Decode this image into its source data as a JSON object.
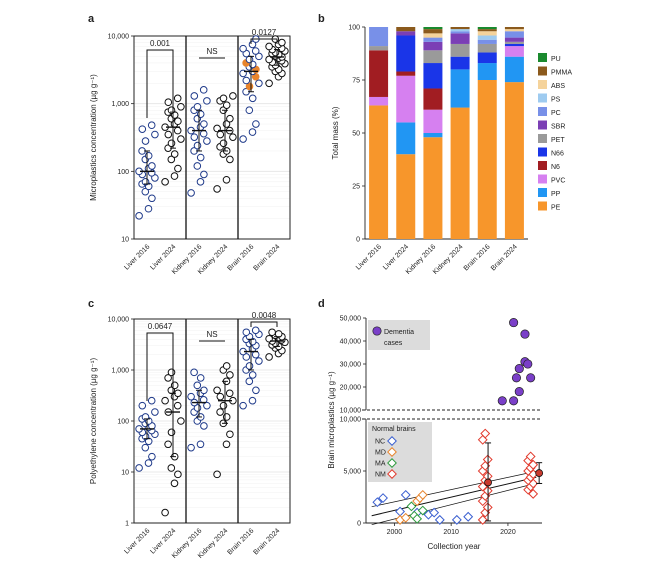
{
  "chart_data": [
    {
      "panel": "a",
      "type": "scatter",
      "ylabel": "Microplastics concentration (µg g⁻¹)",
      "yscale": "log",
      "ylim": [
        10,
        10000
      ],
      "yticks": [
        "10",
        "100",
        "1,000",
        "10,000"
      ],
      "categories": [
        "Liver 2016",
        "Liver 2024",
        "Kidney 2016",
        "Kidney 2024",
        "Brain 2016",
        "Brain 2024"
      ],
      "series": [
        {
          "values": [
            22,
            28,
            40,
            50,
            60,
            65,
            70,
            80,
            90,
            95,
            100,
            110,
            120,
            150,
            170,
            200,
            280,
            350,
            420,
            480
          ]
        },
        {
          "values": [
            70,
            85,
            110,
            150,
            180,
            220,
            260,
            300,
            350,
            400,
            450,
            500,
            550,
            600,
            680,
            750,
            800,
            900,
            1050,
            1200
          ]
        },
        {
          "values": [
            48,
            70,
            90,
            120,
            160,
            200,
            240,
            280,
            320,
            360,
            400,
            450,
            500,
            600,
            700,
            800,
            900,
            1100,
            1300,
            1600
          ]
        },
        {
          "values": [
            55,
            75,
            150,
            180,
            200,
            230,
            260,
            320,
            350,
            400,
            430,
            500,
            600,
            800,
            950,
            1100,
            1200,
            1300
          ]
        },
        {
          "values": [
            300,
            380,
            500,
            800,
            1200,
            1500,
            1800,
            2000,
            2200,
            2500,
            2800,
            3000,
            3200,
            3500,
            3800,
            4000,
            4500,
            5000,
            5500,
            6000,
            6500,
            7500,
            9000
          ]
        },
        {
          "values": [
            2000,
            2500,
            2800,
            3000,
            3200,
            3500,
            3700,
            3900,
            4100,
            4300,
            4500,
            4700,
            4900,
            5100,
            5300,
            5500,
            5700,
            6000,
            6300,
            6600,
            7000,
            7500,
            8000,
            9000
          ]
        }
      ],
      "brackets": [
        {
          "from": "Liver 2016",
          "to": "Liver 2024",
          "label": "0.001"
        },
        {
          "from": "Kidney 2016",
          "to": "Kidney 2024",
          "label": "NS"
        },
        {
          "from": "Brain 2016",
          "to": "Brain 2024",
          "label": "0.0127"
        }
      ],
      "colors": {
        "2016": "#1f3a8a",
        "2024": "#111111",
        "highlight": "#e8842c"
      }
    },
    {
      "panel": "b",
      "type": "bar",
      "ylabel": "Total mass (%)",
      "ylim": [
        0,
        100
      ],
      "yticks": [
        "0",
        "25",
        "50",
        "75",
        "100"
      ],
      "categories": [
        "Liver 2016",
        "Liver 2024",
        "Kidney 2016",
        "Kidney 2024",
        "Brain 2016",
        "Brain 2024"
      ],
      "series": [
        {
          "name": "PE",
          "color": "#f7962b",
          "values": [
            63,
            40,
            48,
            62,
            75,
            74
          ]
        },
        {
          "name": "PP",
          "color": "#2196f3",
          "values": [
            0,
            15,
            2,
            18,
            8,
            12
          ]
        },
        {
          "name": "PVC",
          "color": "#d680f0",
          "values": [
            4,
            22,
            11,
            0,
            0,
            5
          ]
        },
        {
          "name": "N6",
          "color": "#a11d22",
          "values": [
            22,
            2,
            10,
            0,
            0,
            0
          ]
        },
        {
          "name": "N66",
          "color": "#1a35e8",
          "values": [
            0,
            17,
            12,
            6,
            5,
            1
          ]
        },
        {
          "name": "PET",
          "color": "#9a9a9a",
          "values": [
            2,
            0,
            6,
            6,
            4,
            1
          ]
        },
        {
          "name": "SBR",
          "color": "#7b3fb5",
          "values": [
            0,
            2,
            4,
            5,
            0,
            2
          ]
        },
        {
          "name": "PC",
          "color": "#7890e8",
          "values": [
            9,
            0,
            2,
            1,
            2,
            3
          ]
        },
        {
          "name": "PS",
          "color": "#9ecbf0",
          "values": [
            0,
            0,
            0,
            1,
            2,
            0
          ]
        },
        {
          "name": "ABS",
          "color": "#f5d39b",
          "values": [
            0,
            0,
            2,
            0,
            2,
            1
          ]
        },
        {
          "name": "PMMA",
          "color": "#8b5a1d",
          "values": [
            0,
            2,
            2,
            1,
            1,
            1
          ]
        },
        {
          "name": "PU",
          "color": "#1a8a2e",
          "values": [
            0,
            0,
            1,
            0,
            1,
            0
          ]
        }
      ]
    },
    {
      "panel": "c",
      "type": "scatter",
      "ylabel": "Polyethylene concentration (µg g⁻¹)",
      "yscale": "log",
      "ylim": [
        1,
        10000
      ],
      "yticks": [
        "1",
        "10",
        "100",
        "1,000",
        "10,000"
      ],
      "categories": [
        "Liver 2016",
        "Liver 2024",
        "Kidney 2016",
        "Kidney 2024",
        "Brain 2016",
        "Brain 2024"
      ],
      "series": [
        {
          "values": [
            12,
            15,
            20,
            30,
            40,
            45,
            50,
            55,
            60,
            65,
            70,
            75,
            80,
            90,
            100,
            110,
            120,
            150,
            200,
            250
          ]
        },
        {
          "values": [
            1.6,
            6,
            9,
            12,
            20,
            35,
            60,
            100,
            150,
            200,
            250,
            300,
            350,
            400,
            500,
            700,
            900
          ]
        },
        {
          "values": [
            30,
            35,
            80,
            100,
            120,
            150,
            180,
            200,
            230,
            260,
            300,
            350,
            400,
            500,
            700,
            900
          ]
        },
        {
          "values": [
            9,
            35,
            55,
            90,
            120,
            150,
            200,
            250,
            300,
            350,
            400,
            600,
            800,
            1000,
            1200
          ]
        },
        {
          "values": [
            200,
            250,
            400,
            600,
            800,
            1000,
            1200,
            1500,
            1800,
            2000,
            2300,
            2600,
            3000,
            3300,
            3600,
            4000,
            4500,
            5000,
            5500,
            6000
          ]
        },
        {
          "values": [
            1800,
            2100,
            2400,
            2700,
            2900,
            3100,
            3300,
            3500,
            3700,
            3900,
            4100,
            4300,
            4500,
            4800,
            5100,
            5500
          ]
        }
      ],
      "brackets": [
        {
          "from": "Liver 2016",
          "to": "Liver 2024",
          "label": "0.0647"
        },
        {
          "from": "Kidney 2016",
          "to": "Kidney 2024",
          "label": "NS"
        },
        {
          "from": "Brain 2016",
          "to": "Brain 2024",
          "label": "0.0048"
        }
      ],
      "colors": {
        "2016": "#1f3a8a",
        "2024": "#111111"
      }
    },
    {
      "panel": "d",
      "type": "scatter",
      "xlabel": "Collection year",
      "ylabel": "Brain microplastics (µg g⁻¹)",
      "xlim": [
        1995,
        2026
      ],
      "xticks": [
        "2000",
        "2010",
        "2020"
      ],
      "ylim_upper": [
        10000,
        50000
      ],
      "yticks_upper": [
        "10,000",
        "20,000",
        "30,000",
        "40,000",
        "50,000"
      ],
      "ylim_lower": [
        0,
        10000
      ],
      "yticks_lower": [
        "0",
        "5,000",
        "10,000"
      ],
      "legend_upper": "Dementia cases",
      "legend_lower_title": "Normal brains",
      "legend_lower": [
        {
          "label": "NC",
          "color": "#3a5fd0"
        },
        {
          "label": "MD",
          "color": "#e8842c"
        },
        {
          "label": "MA",
          "color": "#2e9b3e"
        },
        {
          "label": "NM",
          "color": "#e23b2e"
        }
      ],
      "dementia": {
        "color": "#7a3fc8",
        "points": [
          [
            2019,
            14000
          ],
          [
            2021,
            48000
          ],
          [
            2021,
            14000
          ],
          [
            2021.5,
            24000
          ],
          [
            2022,
            28000
          ],
          [
            2022,
            18000
          ],
          [
            2023,
            43000
          ],
          [
            2023,
            31000
          ],
          [
            2023.5,
            30000
          ],
          [
            2024,
            24000
          ]
        ]
      },
      "normal": [
        {
          "label": "NC",
          "points": [
            [
              1997,
              2000
            ],
            [
              1998,
              2400
            ],
            [
              2001,
              1100
            ],
            [
              2002,
              2700
            ],
            [
              2004,
              1000
            ],
            [
              2006,
              800
            ],
            [
              2007,
              1000
            ],
            [
              2008,
              300
            ],
            [
              2011,
              300
            ],
            [
              2013,
              600
            ]
          ]
        },
        {
          "label": "MD",
          "points": [
            [
              2001,
              300
            ],
            [
              2002,
              500
            ],
            [
              2004,
              2100
            ],
            [
              2004.5,
              2400
            ],
            [
              2005,
              2700
            ]
          ]
        },
        {
          "label": "MA",
          "points": [
            [
              2003,
              1600
            ],
            [
              2003.5,
              700
            ],
            [
              2004,
              400
            ],
            [
              2005,
              1200
            ]
          ]
        },
        {
          "label": "NM",
          "points": [
            [
              2016,
              300
            ],
            [
              2016,
              1000
            ],
            [
              2016,
              1500
            ],
            [
              2016,
              2100
            ],
            [
              2016,
              2600
            ],
            [
              2016,
              3100
            ],
            [
              2016,
              3500
            ],
            [
              2016,
              4100
            ],
            [
              2016,
              4500
            ],
            [
              2016,
              5000
            ],
            [
              2016,
              5500
            ],
            [
              2016,
              6100
            ],
            [
              2016,
              8000
            ],
            [
              2016,
              8600
            ],
            [
              2024,
              2800
            ],
            [
              2024,
              3200
            ],
            [
              2024,
              3500
            ],
            [
              2024,
              3800
            ],
            [
              2024,
              4100
            ],
            [
              2024,
              4400
            ],
            [
              2024,
              4700
            ],
            [
              2024,
              5000
            ],
            [
              2024,
              5300
            ],
            [
              2024,
              5600
            ],
            [
              2024,
              6000
            ],
            [
              2024,
              6400
            ]
          ]
        }
      ],
      "means": [
        {
          "x": 2016.5,
          "y": 3900,
          "lo": 200,
          "hi": 7700
        },
        {
          "x": 2025.5,
          "y": 4800,
          "lo": 3800,
          "hi": 5800
        }
      ],
      "trend": {
        "from": [
          1996,
          700
        ],
        "to": [
          2025,
          4400
        ]
      }
    }
  ]
}
